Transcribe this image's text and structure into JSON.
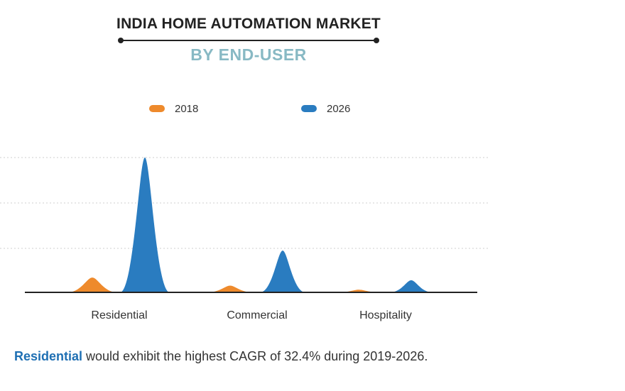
{
  "title": "INDIA HOME AUTOMATION MARKET",
  "subtitle": "BY END-USER",
  "colors": {
    "series_2018": "#ee8a2c",
    "series_2026": "#2a7cc0",
    "highlight": "#1e6fb3",
    "subtitle": "#88b9c4"
  },
  "footnote": {
    "highlight": "Residential",
    "text": " would exhibit the highest CAGR of 32.4% during 2019-2026."
  },
  "chart_data": {
    "type": "area",
    "title": "INDIA HOME AUTOMATION MARKET",
    "subtitle": "BY END-USER",
    "categories": [
      "Residential",
      "Commercial",
      "Hospitality"
    ],
    "series": [
      {
        "name": "2018",
        "color": "#ee8a2c",
        "values": [
          11,
          5,
          2
        ]
      },
      {
        "name": "2026",
        "color": "#2a7cc0",
        "values": [
          100,
          31,
          9
        ]
      }
    ],
    "ylim": [
      0,
      100
    ],
    "grid": true,
    "axis_values_shown": false,
    "legend_position": "top"
  }
}
